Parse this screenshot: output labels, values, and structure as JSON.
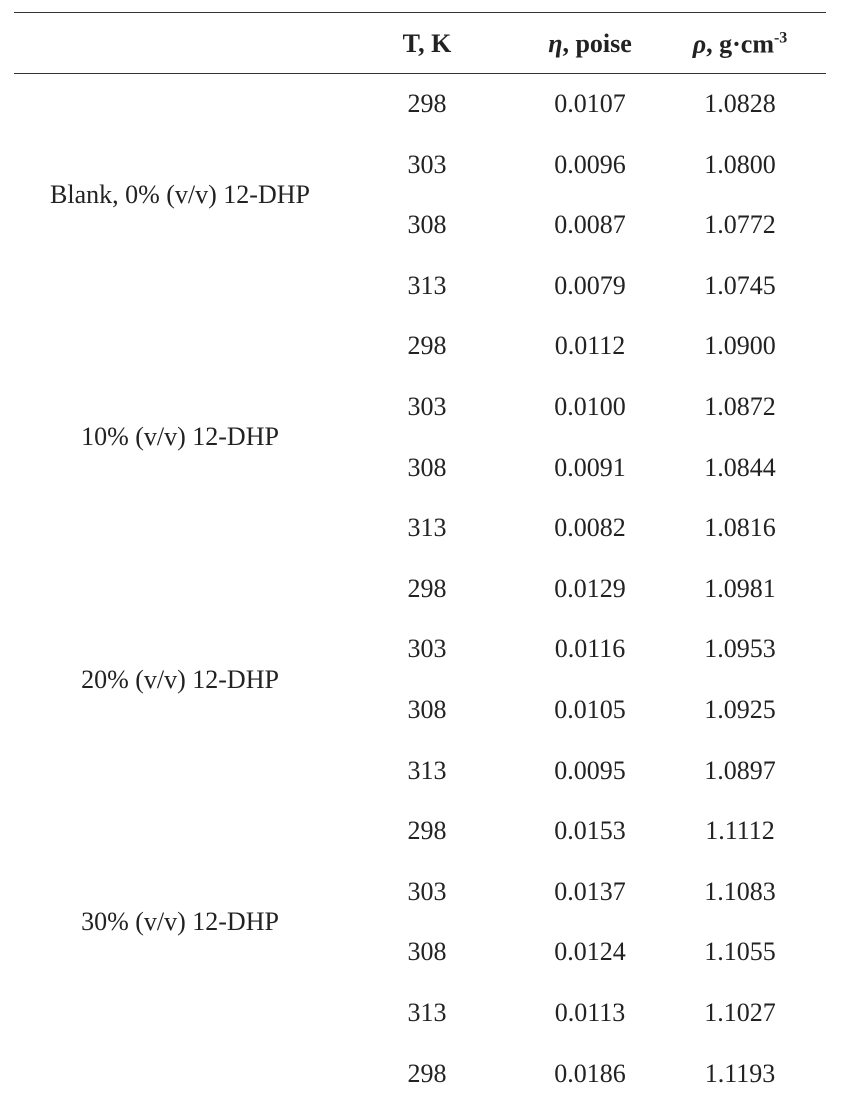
{
  "header": {
    "cells": [
      {
        "text": "T, K"
      },
      {
        "symbol": "η",
        "text": ", poise"
      },
      {
        "symbol": "ρ",
        "text": ", g·cm",
        "sup": "-3"
      }
    ]
  },
  "groups": [
    {
      "label": "Blank, 0% (v/v) 12-DHP",
      "rows": [
        [
          "298",
          "0.0107",
          "1.0828"
        ],
        [
          "303",
          "0.0096",
          "1.0800"
        ],
        [
          "308",
          "0.0087",
          "1.0772"
        ],
        [
          "313",
          "0.0079",
          "1.0745"
        ]
      ]
    },
    {
      "label": "10% (v/v) 12-DHP",
      "rows": [
        [
          "298",
          "0.0112",
          "1.0900"
        ],
        [
          "303",
          "0.0100",
          "1.0872"
        ],
        [
          "308",
          "0.0091",
          "1.0844"
        ],
        [
          "313",
          "0.0082",
          "1.0816"
        ]
      ]
    },
    {
      "label": "20% (v/v) 12-DHP",
      "rows": [
        [
          "298",
          "0.0129",
          "1.0981"
        ],
        [
          "303",
          "0.0116",
          "1.0953"
        ],
        [
          "308",
          "0.0105",
          "1.0925"
        ],
        [
          "313",
          "0.0095",
          "1.0897"
        ]
      ]
    },
    {
      "label": "30% (v/v) 12-DHP",
      "rows": [
        [
          "298",
          "0.0153",
          "1.1112"
        ],
        [
          "303",
          "0.0137",
          "1.1083"
        ],
        [
          "308",
          "0.0124",
          "1.1055"
        ],
        [
          "313",
          "0.0113",
          "1.1027"
        ]
      ]
    },
    {
      "rows": [
        [
          "298",
          "0.0186",
          "1.1193"
        ]
      ]
    }
  ]
}
